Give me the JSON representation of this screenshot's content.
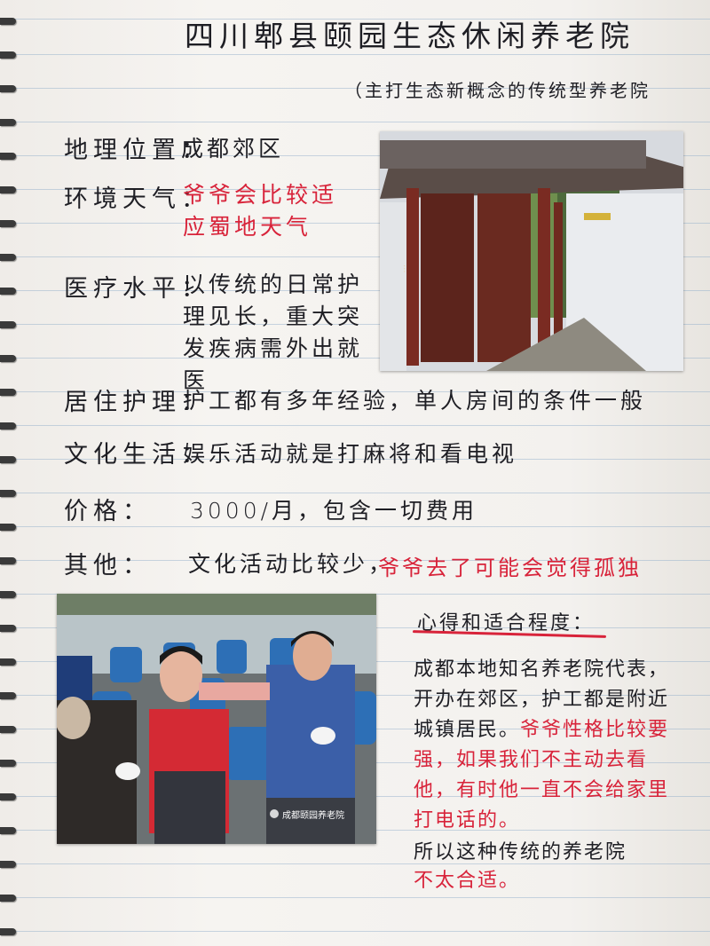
{
  "title": "四川郫县颐园生态休闲养老院",
  "subtitle": "（主打生态新概念的传统型养老院",
  "fields": [
    {
      "label": "地理位置：",
      "value": "成都郊区"
    },
    {
      "label": "环境天气：",
      "value_red": "爷爷会比较适应蜀地天气"
    },
    {
      "label": "医疗水平：",
      "value": "以传统的日常护理见长，重大突发疾病需外出就医"
    },
    {
      "label": "居住护理：",
      "value": "护工都有多年经验，单人房间的条件一般"
    },
    {
      "label": "文化生活：",
      "value": "娱乐活动就是打麻将和看电视"
    },
    {
      "label": "价格：",
      "value": "3000/月，包含一切费用"
    },
    {
      "label": "其他：",
      "value": "文化活动比较少，",
      "value_red": "爷爷去了可能会觉得孤独"
    }
  ],
  "notes": {
    "heading": "心得和适合程度：",
    "black_1": "成都本地知名养老院代表，开办在郊区，护工都是附近城镇居民。",
    "red": "爷爷性格比较要强，如果我们不主动去看他，有时他一直不会给家里打电话的。",
    "black_2": "所以这种传统的养老院",
    "red_2": "不太合适。"
  },
  "photos": {
    "gate_image": "养老院大门照片",
    "people_image": "老人们开心大笑的照片",
    "watermark": "成都颐园养老院"
  },
  "colors": {
    "ink": "#1e1e24",
    "red_ink": "#d8233a",
    "paper": "#f4f2ef"
  }
}
